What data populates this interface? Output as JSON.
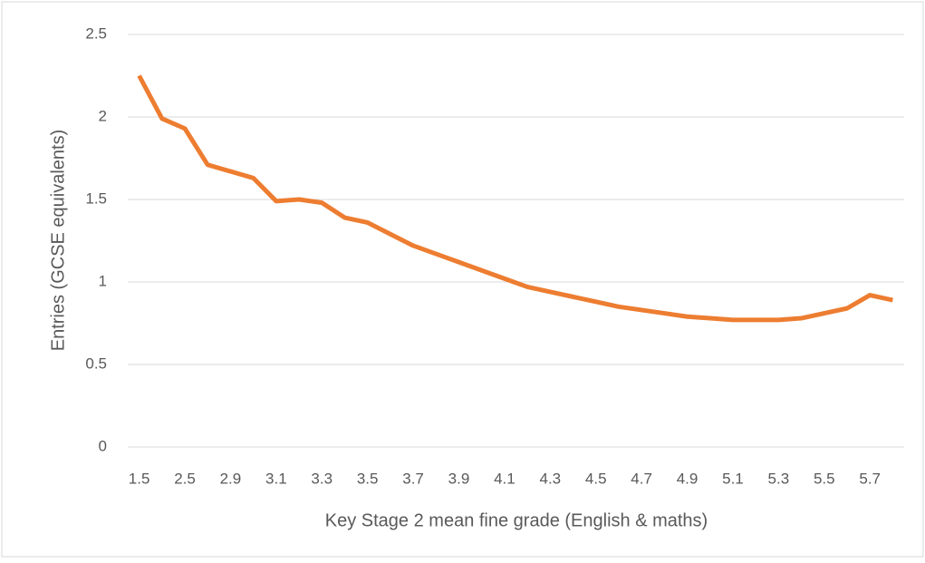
{
  "chart_data": {
    "type": "line",
    "x_label": "Key Stage 2 mean fine grade (English & maths)",
    "y_label": "Entries (GCSE equivalents)",
    "categories": [
      "1.5",
      null,
      "2.5",
      null,
      "2.9",
      null,
      "3.1",
      null,
      "3.3",
      null,
      "3.5",
      null,
      "3.7",
      null,
      "3.9",
      null,
      "4.1",
      null,
      "4.3",
      null,
      "4.5",
      null,
      "4.7",
      null,
      "4.9",
      null,
      "5.1",
      null,
      "5.3",
      null,
      "5.5",
      null,
      "5.7",
      null
    ],
    "series": [
      {
        "name": "Entries",
        "color": "#ed7d31",
        "values": [
          2.25,
          1.99,
          1.93,
          1.71,
          1.67,
          1.63,
          1.49,
          1.5,
          1.48,
          1.39,
          1.36,
          1.29,
          1.22,
          1.17,
          1.12,
          1.07,
          1.02,
          0.97,
          0.94,
          0.91,
          0.88,
          0.85,
          0.83,
          0.81,
          0.79,
          0.78,
          0.77,
          0.77,
          0.77,
          0.78,
          0.81,
          0.84,
          0.92,
          0.89
        ]
      }
    ],
    "ylim": [
      0,
      2.5
    ],
    "yticks": [
      0,
      0.5,
      1,
      1.5,
      2,
      2.5
    ],
    "grid": true
  }
}
